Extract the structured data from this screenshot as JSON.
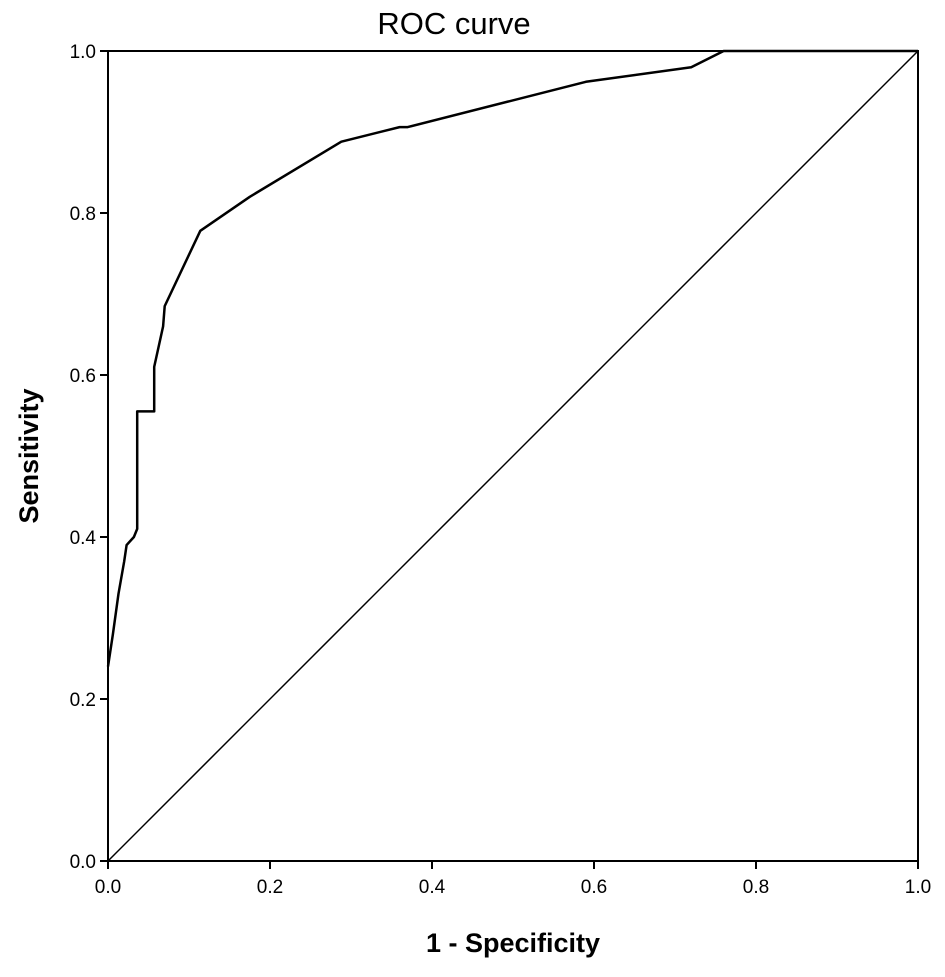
{
  "chart_data": {
    "type": "line",
    "title": "ROC curve",
    "xlabel": "1 - Specificity",
    "ylabel": "Sensitivity",
    "xlim": [
      0.0,
      1.0
    ],
    "ylim": [
      0.0,
      1.0
    ],
    "grid": false,
    "x_ticks": [
      "0.0",
      "0.2",
      "0.4",
      "0.6",
      "0.8",
      "1.0"
    ],
    "y_ticks": [
      "0.0",
      "0.2",
      "0.4",
      "0.6",
      "0.8",
      "1.0"
    ],
    "series": [
      {
        "role": "roc-curve",
        "x": [
          0.0,
          0.006,
          0.013,
          0.02,
          0.023,
          0.032,
          0.036,
          0.036,
          0.057,
          0.057,
          0.068,
          0.07,
          0.114,
          0.175,
          0.288,
          0.36,
          0.37,
          0.59,
          0.72,
          0.76,
          1.0
        ],
        "y": [
          0.24,
          0.28,
          0.33,
          0.37,
          0.39,
          0.4,
          0.41,
          0.555,
          0.555,
          0.61,
          0.66,
          0.685,
          0.778,
          0.82,
          0.888,
          0.906,
          0.906,
          0.962,
          0.98,
          1.0,
          1.0
        ]
      },
      {
        "role": "reference-line",
        "x": [
          0.0,
          1.0
        ],
        "y": [
          0.0,
          1.0
        ]
      }
    ],
    "colors": {
      "line": "#000000",
      "background": "#ffffff"
    }
  }
}
